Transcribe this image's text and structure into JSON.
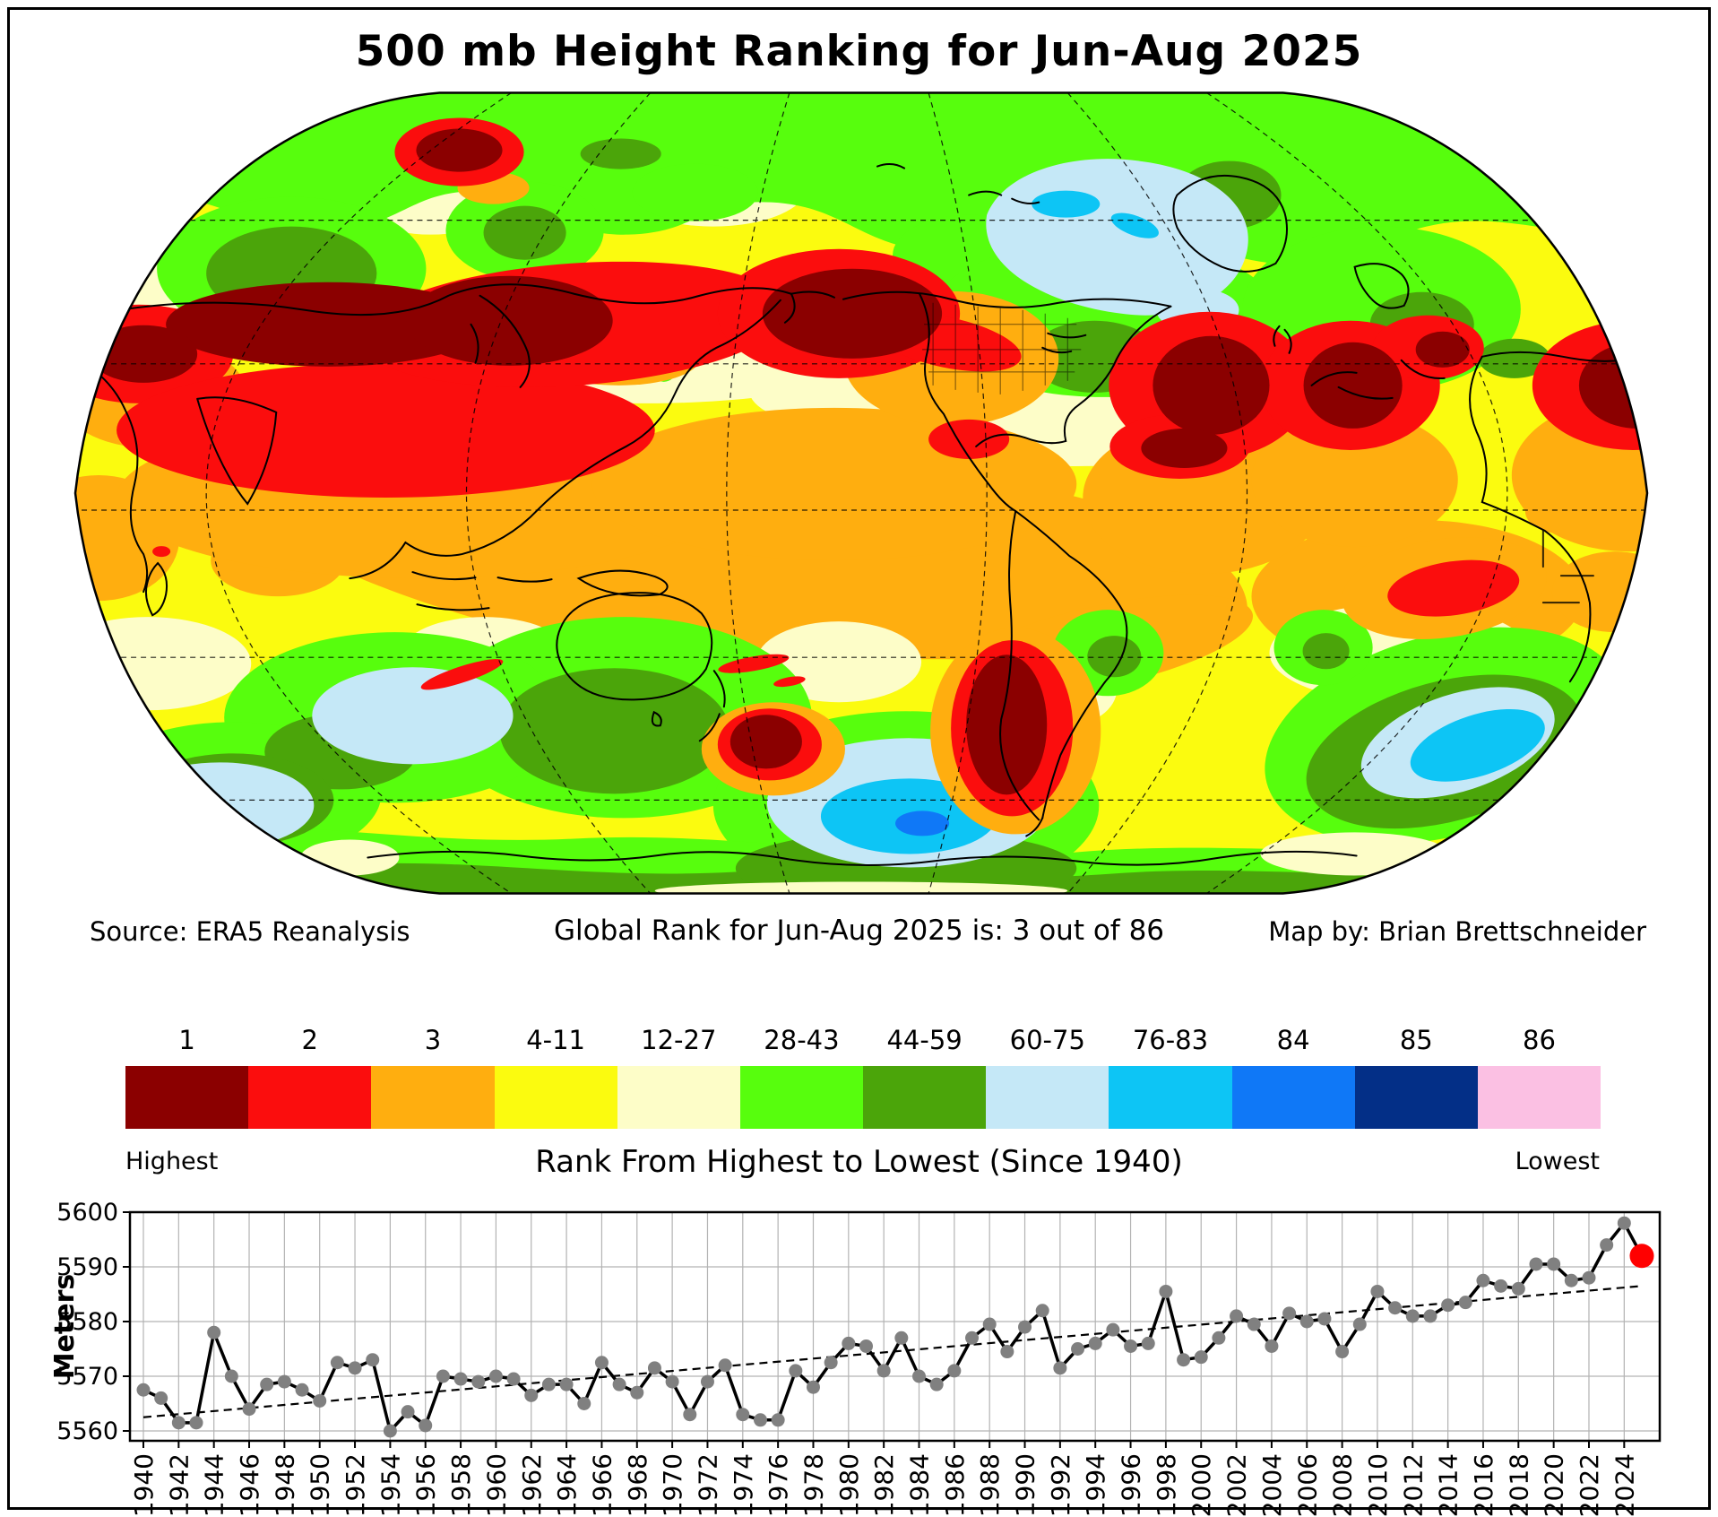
{
  "title": "500 mb Height Ranking for Jun-Aug 2025",
  "notes": {
    "source": "Source: ERA5 Reanalysis",
    "global_rank": "Global Rank for Jun-Aug 2025 is: 3 out of 86",
    "credit": "Map by: Brian Brettschneider"
  },
  "legend": {
    "title": "Rank From Highest to Lowest (Since 1940)",
    "left_label": "Highest",
    "right_label": "Lowest",
    "bins": [
      {
        "label": "1",
        "color": "#8B0000"
      },
      {
        "label": "2",
        "color": "#FB0D0D"
      },
      {
        "label": "3",
        "color": "#FFAE0F"
      },
      {
        "label": "4-11",
        "color": "#FBFB0F"
      },
      {
        "label": "12-27",
        "color": "#FDFDC8"
      },
      {
        "label": "28-43",
        "color": "#57FE0D"
      },
      {
        "label": "44-59",
        "color": "#4BA50A"
      },
      {
        "label": "60-75",
        "color": "#C5E8F7"
      },
      {
        "label": "76-83",
        "color": "#0DC5F5"
      },
      {
        "label": "84",
        "color": "#0F78F7"
      },
      {
        "label": "85",
        "color": "#032F87"
      },
      {
        "label": "86",
        "color": "#FBC0E3"
      }
    ]
  },
  "chart_data": {
    "type": "line",
    "title": "",
    "xlabel": "",
    "ylabel": "Meters",
    "ylim": [
      5558.3,
      5600
    ],
    "yticks": [
      5560,
      5570,
      5580,
      5590,
      5600
    ],
    "xtick_step": 2,
    "grid": true,
    "line_color": "#000000",
    "marker_color": "#808080",
    "grid_color": "#b3b3b3",
    "years": [
      1940,
      1941,
      1942,
      1943,
      1944,
      1945,
      1946,
      1947,
      1948,
      1949,
      1950,
      1951,
      1952,
      1953,
      1954,
      1955,
      1956,
      1957,
      1958,
      1959,
      1960,
      1961,
      1962,
      1963,
      1964,
      1965,
      1966,
      1967,
      1968,
      1969,
      1970,
      1971,
      1972,
      1973,
      1974,
      1975,
      1976,
      1977,
      1978,
      1979,
      1980,
      1981,
      1982,
      1983,
      1984,
      1985,
      1986,
      1987,
      1988,
      1989,
      1990,
      1991,
      1992,
      1993,
      1994,
      1995,
      1996,
      1997,
      1998,
      1999,
      2000,
      2001,
      2002,
      2003,
      2004,
      2005,
      2006,
      2007,
      2008,
      2009,
      2010,
      2011,
      2012,
      2013,
      2014,
      2015,
      2016,
      2017,
      2018,
      2019,
      2020,
      2021,
      2022,
      2023,
      2024,
      2025
    ],
    "values": [
      5567.5,
      5566,
      5561.5,
      5561.5,
      5578,
      5570,
      5564,
      5568.5,
      5569,
      5567.5,
      5565.5,
      5572.5,
      5571.5,
      5573,
      5560,
      5563.5,
      5561,
      5570,
      5569.5,
      5569,
      5570,
      5569.5,
      5566.5,
      5568.5,
      5568.5,
      5565,
      5572.5,
      5568.5,
      5567,
      5571.5,
      5569,
      5563,
      5569,
      5572,
      5563,
      5562,
      5562,
      5571,
      5568,
      5572.5,
      5576,
      5575.5,
      5571,
      5577,
      5570,
      5568.5,
      5571,
      5577,
      5579.5,
      5574.5,
      5579,
      5582,
      5571.5,
      5575,
      5576,
      5578.5,
      5575.5,
      5576,
      5585.5,
      5573,
      5573.5,
      5577,
      5581,
      5579.5,
      5575.5,
      5581.5,
      5580,
      5580.5,
      5574.5,
      5579.5,
      5585.5,
      5582.5,
      5581,
      5581,
      5583,
      5583.5,
      5587.5,
      5586.5,
      5586,
      5590.5,
      5590.5,
      5587.5,
      5588,
      5594,
      5598,
      5592
    ],
    "trend": {
      "start_year": 1940,
      "start_value": 5562.5,
      "end_year": 2025,
      "end_value": 5586.5
    },
    "highlight": {
      "year": 2025,
      "value": 5592,
      "color": "#FF0000"
    }
  }
}
